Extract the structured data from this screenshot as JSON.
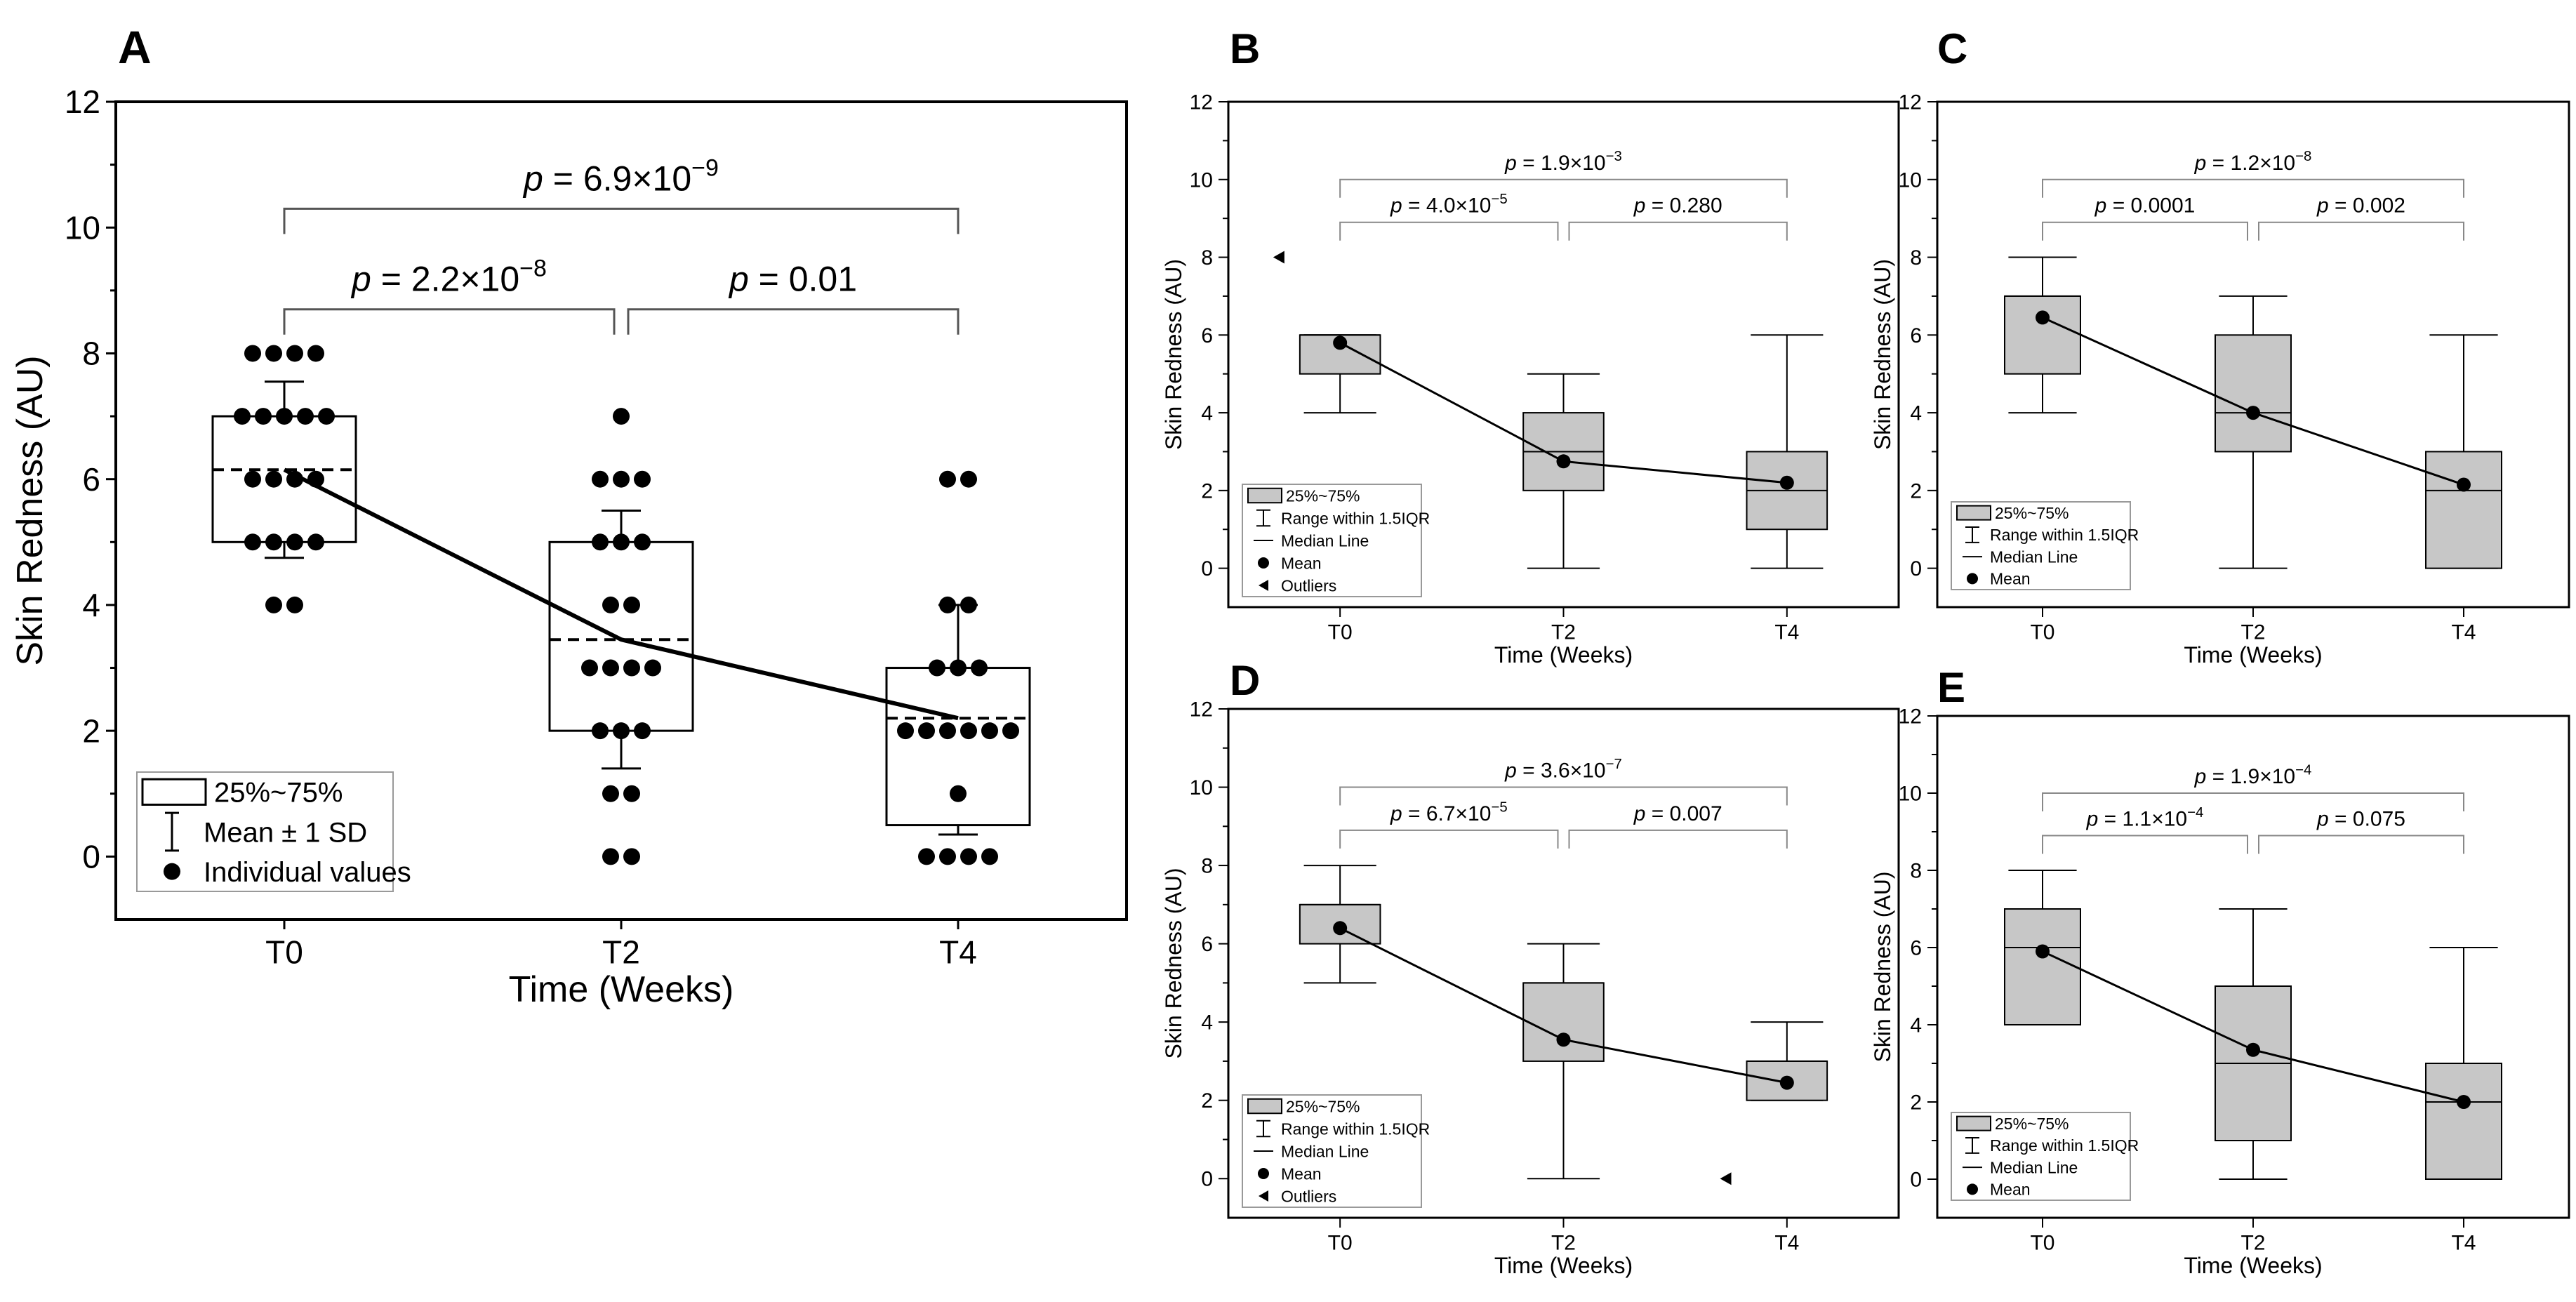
{
  "figure": {
    "panel_letters": [
      "A",
      "B",
      "C",
      "D",
      "E"
    ]
  },
  "chart_data": [
    {
      "panel": "A",
      "type": "box",
      "xlabel": "Time (Weeks)",
      "ylabel": "Skin Redness (AU)",
      "ylim": [
        -1,
        12
      ],
      "yticks": [
        0,
        2,
        4,
        6,
        8,
        10,
        12
      ],
      "categories": [
        "T0",
        "T2",
        "T4"
      ],
      "boxes": [
        {
          "q1": 5,
          "q3": 7,
          "mean": 6.15,
          "sd_low": 4.75,
          "sd_high": 7.55
        },
        {
          "q1": 2,
          "q3": 5,
          "mean": 3.45,
          "sd_low": 1.4,
          "sd_high": 5.5
        },
        {
          "q1": 0.5,
          "q3": 3,
          "mean": 2.2,
          "sd_low": 0.35,
          "sd_high": 4.0
        }
      ],
      "individual_values": [
        [
          8,
          8,
          8,
          8,
          7,
          7,
          7,
          7,
          7,
          6,
          6,
          6,
          6,
          5,
          5,
          5,
          5,
          4,
          4
        ],
        [
          7,
          6,
          6,
          6,
          5,
          5,
          5,
          4,
          4,
          3,
          3,
          3,
          3,
          2,
          2,
          2,
          1,
          1,
          0,
          0
        ],
        [
          6,
          6,
          4,
          4,
          3,
          3,
          3,
          2,
          2,
          2,
          2,
          2,
          2,
          1,
          0,
          0,
          0,
          0
        ]
      ],
      "brackets": [
        {
          "from": 0,
          "to": 1,
          "label": "p = 2.2×10⁻⁸",
          "level": 1
        },
        {
          "from": 1,
          "to": 2,
          "label": "p = 0.01",
          "level": 1
        },
        {
          "from": 0,
          "to": 2,
          "label": "p = 6.9×10⁻⁹",
          "level": 2
        }
      ],
      "legend": [
        "25%~75%",
        "Mean ± 1 SD",
        "Individual values"
      ]
    },
    {
      "panel": "B",
      "type": "box",
      "xlabel": "Time (Weeks)",
      "ylabel": "Skin Redness (AU)",
      "ylim": [
        -1,
        12
      ],
      "yticks": [
        0,
        2,
        4,
        6,
        8,
        10,
        12
      ],
      "categories": [
        "T0",
        "T2",
        "T4"
      ],
      "boxes": [
        {
          "whisker_low": 4,
          "q1": 5,
          "median": 6,
          "q3": 6,
          "whisker_high": 6,
          "mean": 5.8
        },
        {
          "whisker_low": 0,
          "q1": 2,
          "median": 3,
          "q3": 4,
          "whisker_high": 5,
          "mean": 2.75
        },
        {
          "whisker_low": 0,
          "q1": 1,
          "median": 2,
          "q3": 3,
          "whisker_high": 6,
          "mean": 2.2
        }
      ],
      "outliers": [
        [
          8
        ],
        [],
        []
      ],
      "brackets": [
        {
          "from": 0,
          "to": 1,
          "label": "p = 4.0×10⁻⁵",
          "level": 1
        },
        {
          "from": 1,
          "to": 2,
          "label": "p = 0.280",
          "level": 1
        },
        {
          "from": 0,
          "to": 2,
          "label": "p = 1.9×10⁻³",
          "level": 2
        }
      ],
      "legend": [
        "25%~75%",
        "Range within 1.5IQR",
        "Median Line",
        "Mean",
        "Outliers"
      ]
    },
    {
      "panel": "C",
      "type": "box",
      "xlabel": "Time (Weeks)",
      "ylabel": "Skin Redness (AU)",
      "ylim": [
        -1,
        12
      ],
      "yticks": [
        0,
        2,
        4,
        6,
        8,
        10,
        12
      ],
      "categories": [
        "T0",
        "T2",
        "T4"
      ],
      "boxes": [
        {
          "whisker_low": 4,
          "q1": 5,
          "median": 7,
          "q3": 7,
          "whisker_high": 8,
          "mean": 6.45
        },
        {
          "whisker_low": 0,
          "q1": 3,
          "median": 4,
          "q3": 6,
          "whisker_high": 7,
          "mean": 4.0
        },
        {
          "whisker_low": 0,
          "q1": 0,
          "median": 2,
          "q3": 3,
          "whisker_high": 6,
          "mean": 2.15
        }
      ],
      "outliers": [
        [],
        [],
        []
      ],
      "brackets": [
        {
          "from": 0,
          "to": 1,
          "label": "p = 0.0001",
          "level": 1
        },
        {
          "from": 1,
          "to": 2,
          "label": "p = 0.002",
          "level": 1
        },
        {
          "from": 0,
          "to": 2,
          "label": "p = 1.2×10⁻⁸",
          "level": 2
        }
      ],
      "legend": [
        "25%~75%",
        "Range within 1.5IQR",
        "Median Line",
        "Mean"
      ]
    },
    {
      "panel": "D",
      "type": "box",
      "xlabel": "Time (Weeks)",
      "ylabel": "Skin Redness (AU)",
      "ylim": [
        -1,
        12
      ],
      "yticks": [
        0,
        2,
        4,
        6,
        8,
        10,
        12
      ],
      "categories": [
        "T0",
        "T2",
        "T4"
      ],
      "boxes": [
        {
          "whisker_low": 5,
          "q1": 6,
          "median": 7,
          "q3": 7,
          "whisker_high": 8,
          "mean": 6.4
        },
        {
          "whisker_low": 0,
          "q1": 3,
          "median": 5,
          "q3": 5,
          "whisker_high": 6,
          "mean": 3.55
        },
        {
          "whisker_low": 2,
          "q1": 2,
          "median": 3,
          "q3": 3,
          "whisker_high": 4,
          "mean": 2.45
        }
      ],
      "outliers": [
        [],
        [],
        [
          0
        ]
      ],
      "brackets": [
        {
          "from": 0,
          "to": 1,
          "label": "p = 6.7×10⁻⁵",
          "level": 1
        },
        {
          "from": 1,
          "to": 2,
          "label": "p = 0.007",
          "level": 1
        },
        {
          "from": 0,
          "to": 2,
          "label": "p = 3.6×10⁻⁷",
          "level": 2
        }
      ],
      "legend": [
        "25%~75%",
        "Range within 1.5IQR",
        "Median Line",
        "Mean",
        "Outliers"
      ]
    },
    {
      "panel": "E",
      "type": "box",
      "xlabel": "Time (Weeks)",
      "ylabel": "Skin Redness (AU)",
      "ylim": [
        -1,
        12
      ],
      "yticks": [
        0,
        2,
        4,
        6,
        8,
        10,
        12
      ],
      "categories": [
        "T0",
        "T2",
        "T4"
      ],
      "boxes": [
        {
          "whisker_low": 4,
          "q1": 4,
          "median": 6,
          "q3": 7,
          "whisker_high": 8,
          "mean": 5.9
        },
        {
          "whisker_low": 0,
          "q1": 1,
          "median": 3,
          "q3": 5,
          "whisker_high": 7,
          "mean": 3.35
        },
        {
          "whisker_low": 0,
          "q1": 0,
          "median": 2,
          "q3": 3,
          "whisker_high": 6,
          "mean": 2.0
        }
      ],
      "outliers": [
        [],
        [],
        []
      ],
      "brackets": [
        {
          "from": 0,
          "to": 1,
          "label": "p = 1.1×10⁻⁴",
          "level": 1
        },
        {
          "from": 1,
          "to": 2,
          "label": "p = 0.075",
          "level": 1
        },
        {
          "from": 0,
          "to": 2,
          "label": "p = 1.9×10⁻⁴",
          "level": 2
        }
      ],
      "legend": [
        "25%~75%",
        "Range within 1.5IQR",
        "Median Line",
        "Mean"
      ]
    }
  ]
}
